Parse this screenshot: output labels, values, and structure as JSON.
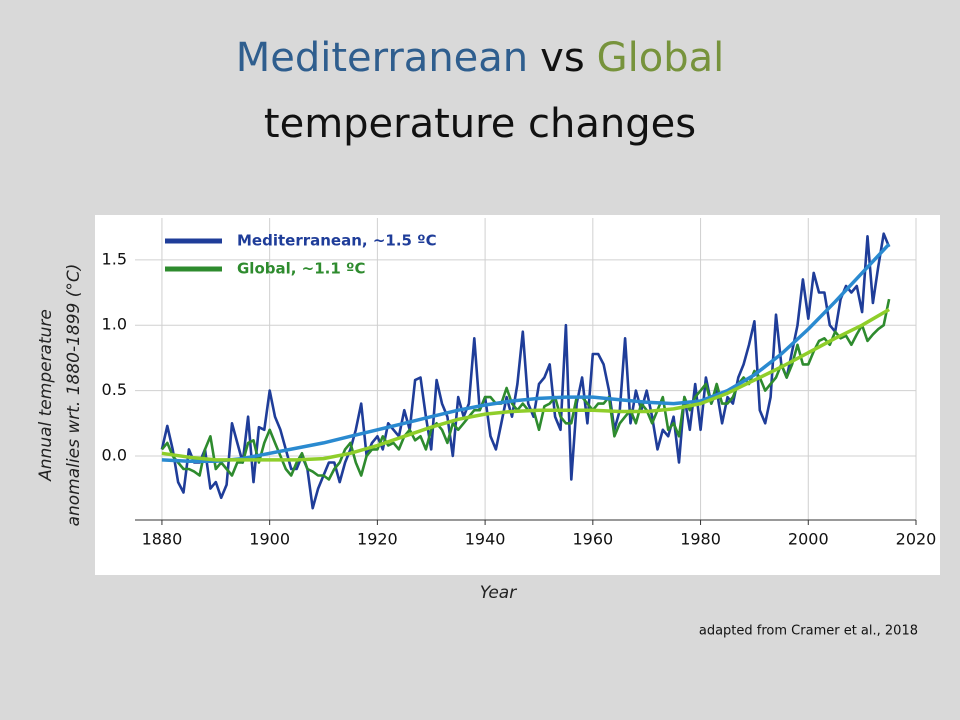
{
  "slide": {
    "title_parts": [
      {
        "text": "Mediterranean",
        "color": "#2f5e8e"
      },
      {
        "text": "vs",
        "color": "#111111"
      },
      {
        "text": "Global",
        "color": "#77933c"
      }
    ],
    "title_line2": "temperature changes",
    "source": "adapted from Cramer et al., 2018"
  },
  "chart_data": {
    "type": "line",
    "x": [
      1880,
      1881,
      1882,
      1883,
      1884,
      1885,
      1886,
      1887,
      1888,
      1889,
      1890,
      1891,
      1892,
      1893,
      1894,
      1895,
      1896,
      1897,
      1898,
      1899,
      1900,
      1901,
      1902,
      1903,
      1904,
      1905,
      1906,
      1907,
      1908,
      1909,
      1910,
      1911,
      1912,
      1913,
      1914,
      1915,
      1916,
      1917,
      1918,
      1919,
      1920,
      1921,
      1922,
      1923,
      1924,
      1925,
      1926,
      1927,
      1928,
      1929,
      1930,
      1931,
      1932,
      1933,
      1934,
      1935,
      1936,
      1937,
      1938,
      1939,
      1940,
      1941,
      1942,
      1943,
      1944,
      1945,
      1946,
      1947,
      1948,
      1949,
      1950,
      1951,
      1952,
      1953,
      1954,
      1955,
      1956,
      1957,
      1958,
      1959,
      1960,
      1961,
      1962,
      1963,
      1964,
      1965,
      1966,
      1967,
      1968,
      1969,
      1970,
      1971,
      1972,
      1973,
      1974,
      1975,
      1976,
      1977,
      1978,
      1979,
      1980,
      1981,
      1982,
      1983,
      1984,
      1985,
      1986,
      1987,
      1988,
      1989,
      1990,
      1991,
      1992,
      1993,
      1994,
      1995,
      1996,
      1997,
      1998,
      1999,
      2000,
      2001,
      2002,
      2003,
      2004,
      2005,
      2006,
      2007,
      2008,
      2009,
      2010,
      2011,
      2012,
      2013,
      2014,
      2015
    ],
    "series": [
      {
        "name": "Mediterranean, ~1.5 ºC",
        "color": "#1f3d99",
        "values": [
          0.05,
          0.23,
          0.05,
          -0.2,
          -0.28,
          0.05,
          -0.05,
          -0.05,
          0.05,
          -0.25,
          -0.2,
          -0.32,
          -0.22,
          0.25,
          0.1,
          -0.05,
          0.3,
          -0.2,
          0.22,
          0.2,
          0.5,
          0.3,
          0.2,
          0.05,
          -0.1,
          -0.1,
          0.0,
          -0.1,
          -0.4,
          -0.25,
          -0.15,
          -0.05,
          -0.05,
          -0.2,
          -0.05,
          0.05,
          0.2,
          0.4,
          0.0,
          0.1,
          0.15,
          0.05,
          0.25,
          0.2,
          0.15,
          0.35,
          0.2,
          0.58,
          0.6,
          0.3,
          0.05,
          0.58,
          0.4,
          0.3,
          0.0,
          0.45,
          0.3,
          0.4,
          0.9,
          0.35,
          0.45,
          0.15,
          0.05,
          0.25,
          0.45,
          0.3,
          0.55,
          0.95,
          0.4,
          0.3,
          0.55,
          0.6,
          0.7,
          0.3,
          0.2,
          1.0,
          -0.18,
          0.4,
          0.6,
          0.25,
          0.78,
          0.78,
          0.7,
          0.5,
          0.2,
          0.35,
          0.9,
          0.25,
          0.5,
          0.35,
          0.5,
          0.3,
          0.05,
          0.2,
          0.15,
          0.3,
          -0.05,
          0.45,
          0.2,
          0.55,
          0.2,
          0.6,
          0.4,
          0.5,
          0.25,
          0.45,
          0.4,
          0.6,
          0.7,
          0.85,
          1.03,
          0.35,
          0.25,
          0.45,
          1.08,
          0.7,
          0.6,
          0.8,
          1.0,
          1.35,
          1.05,
          1.4,
          1.25,
          1.25,
          1.0,
          0.95,
          1.2,
          1.3,
          1.25,
          1.3,
          1.1,
          1.68,
          1.17,
          1.45,
          1.7,
          1.6
        ]
      },
      {
        "name": "Global, ~1.1 ºC",
        "color": "#2e8b2e",
        "values": [
          0.05,
          0.1,
          0.0,
          -0.05,
          -0.1,
          -0.1,
          -0.12,
          -0.15,
          0.05,
          0.15,
          -0.1,
          -0.05,
          -0.1,
          -0.15,
          -0.05,
          -0.05,
          0.1,
          0.12,
          -0.05,
          0.1,
          0.2,
          0.1,
          0.0,
          -0.1,
          -0.15,
          -0.05,
          0.02,
          -0.1,
          -0.12,
          -0.15,
          -0.15,
          -0.18,
          -0.1,
          -0.05,
          0.05,
          0.1,
          -0.05,
          -0.15,
          0.0,
          0.05,
          0.05,
          0.15,
          0.08,
          0.1,
          0.05,
          0.15,
          0.2,
          0.12,
          0.15,
          0.05,
          0.2,
          0.25,
          0.2,
          0.1,
          0.25,
          0.2,
          0.25,
          0.3,
          0.35,
          0.35,
          0.45,
          0.45,
          0.4,
          0.4,
          0.52,
          0.4,
          0.35,
          0.4,
          0.35,
          0.35,
          0.2,
          0.38,
          0.4,
          0.45,
          0.3,
          0.25,
          0.25,
          0.45,
          0.45,
          0.4,
          0.35,
          0.4,
          0.4,
          0.45,
          0.15,
          0.25,
          0.3,
          0.35,
          0.25,
          0.4,
          0.35,
          0.25,
          0.35,
          0.45,
          0.2,
          0.25,
          0.15,
          0.45,
          0.35,
          0.45,
          0.5,
          0.55,
          0.4,
          0.55,
          0.4,
          0.4,
          0.45,
          0.55,
          0.6,
          0.55,
          0.65,
          0.6,
          0.5,
          0.55,
          0.6,
          0.7,
          0.6,
          0.7,
          0.85,
          0.7,
          0.7,
          0.8,
          0.88,
          0.9,
          0.85,
          0.95,
          0.9,
          0.92,
          0.85,
          0.93,
          1.0,
          0.88,
          0.93,
          0.97,
          1.0,
          1.2
        ]
      },
      {
        "color": "#2a8ad0",
        "x": [
          1880,
          1885,
          1890,
          1895,
          1900,
          1905,
          1910,
          1915,
          1920,
          1925,
          1930,
          1935,
          1940,
          1945,
          1950,
          1955,
          1960,
          1965,
          1970,
          1975,
          1980,
          1985,
          1990,
          1995,
          2000,
          2005,
          2010,
          2015
        ],
        "values": [
          -0.03,
          -0.04,
          -0.04,
          -0.02,
          0.02,
          0.06,
          0.1,
          0.15,
          0.2,
          0.25,
          0.3,
          0.35,
          0.39,
          0.42,
          0.44,
          0.45,
          0.45,
          0.43,
          0.41,
          0.4,
          0.42,
          0.5,
          0.62,
          0.78,
          0.97,
          1.18,
          1.4,
          1.62
        ]
      },
      {
        "color": "#8fce2a",
        "x": [
          1880,
          1885,
          1890,
          1895,
          1900,
          1905,
          1910,
          1915,
          1920,
          1925,
          1930,
          1935,
          1940,
          1945,
          1950,
          1955,
          1960,
          1965,
          1970,
          1975,
          1980,
          1985,
          1990,
          1995,
          2000,
          2005,
          2010,
          2015
        ],
        "values": [
          0.02,
          -0.01,
          -0.03,
          -0.03,
          -0.03,
          -0.03,
          -0.02,
          0.02,
          0.08,
          0.15,
          0.22,
          0.28,
          0.32,
          0.34,
          0.35,
          0.35,
          0.35,
          0.34,
          0.34,
          0.36,
          0.4,
          0.48,
          0.58,
          0.68,
          0.79,
          0.9,
          1.0,
          1.12
        ]
      }
    ],
    "x_label": "Year",
    "y_label": [
      "Annual temperature",
      "anomalies wrt. 1880-1899 (°C)"
    ],
    "xlim": [
      1875,
      2020
    ],
    "xticks": [
      1880,
      1900,
      1920,
      1940,
      1960,
      1980,
      2000,
      2020
    ],
    "ylim": [
      -0.49,
      1.82
    ],
    "yticks": [
      {
        "value": 0,
        "label": "0.0"
      },
      0.5,
      {
        "value": 1,
        "label": "1.0"
      },
      1.5
    ],
    "grid": true,
    "legend": "upper left"
  }
}
